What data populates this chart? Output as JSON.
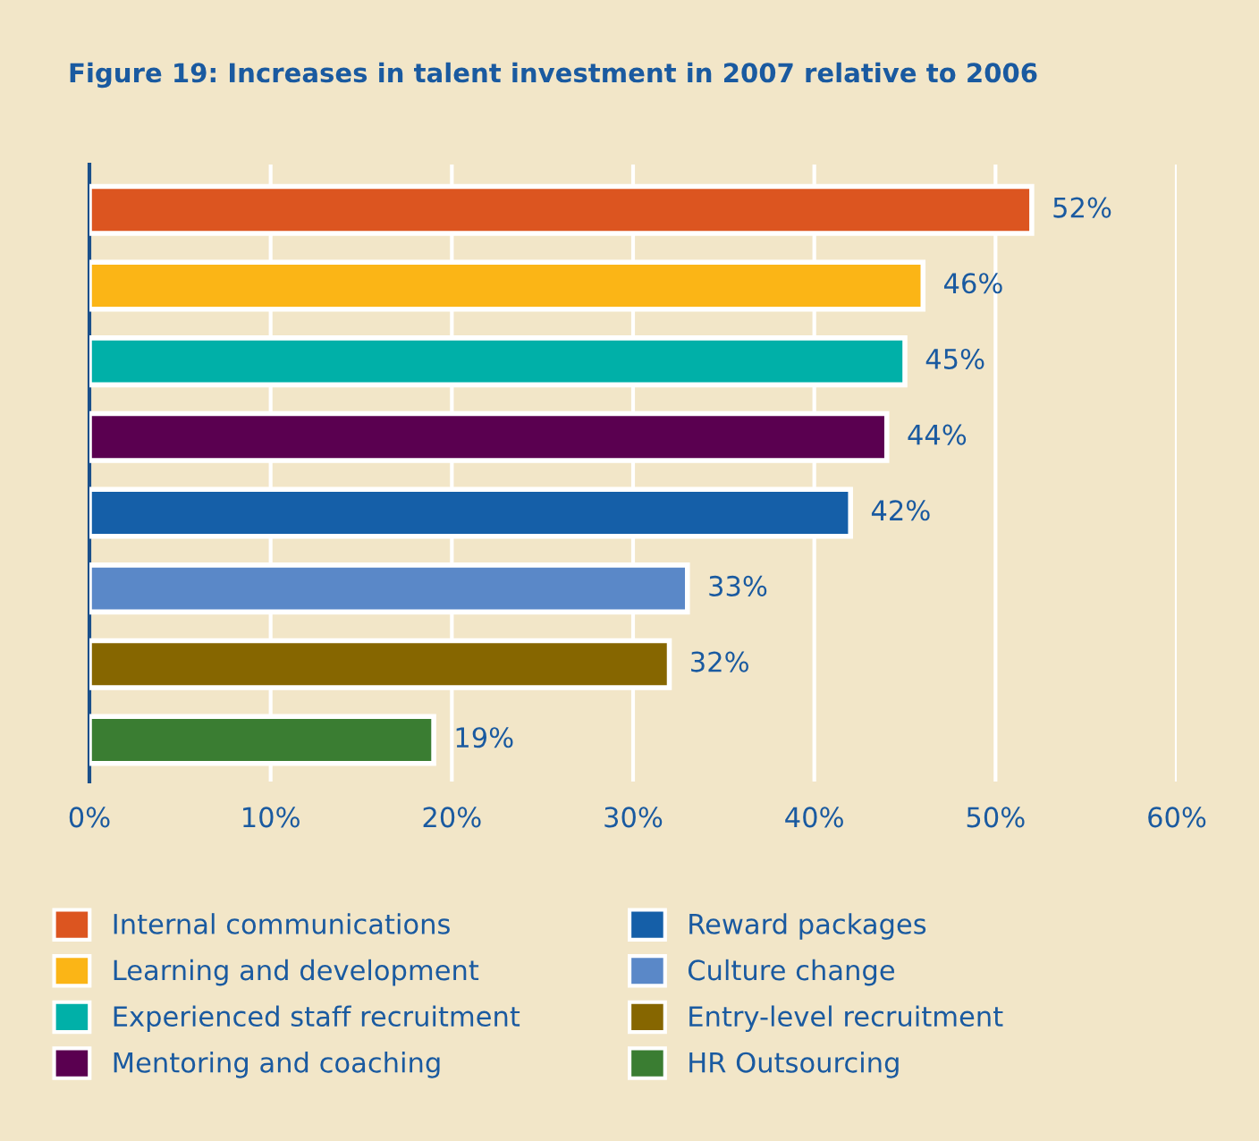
{
  "chart_data": {
    "type": "bar",
    "orientation": "horizontal",
    "title": "Figure 19: Increases in talent investment in 2007 relative to 2006",
    "categories": [
      null,
      null,
      null,
      null,
      null,
      null,
      null,
      null
    ],
    "series": [
      {
        "name": "Internal communications",
        "color": "#dc5520",
        "values": [
          52,
          null,
          null,
          null,
          null,
          null,
          null,
          null
        ],
        "value_labels": [
          "52%",
          null,
          null,
          null,
          null,
          null,
          null,
          null
        ]
      },
      {
        "name": "Learning and development",
        "color": "#fbb516",
        "values": [
          null,
          46,
          null,
          null,
          null,
          null,
          null,
          null
        ],
        "value_labels": [
          null,
          "46%",
          null,
          null,
          null,
          null,
          null,
          null
        ]
      },
      {
        "name": "Experienced staff recruitment",
        "color": "#00b0a8",
        "values": [
          null,
          null,
          45,
          null,
          null,
          null,
          null,
          null
        ],
        "value_labels": [
          null,
          null,
          "45%",
          null,
          null,
          null,
          null,
          null
        ]
      },
      {
        "name": "Mentoring and coaching",
        "color": "#5a0050",
        "values": [
          null,
          null,
          null,
          44,
          null,
          null,
          null,
          null
        ],
        "value_labels": [
          null,
          null,
          null,
          "44%",
          null,
          null,
          null,
          null
        ]
      },
      {
        "name": "Reward packages",
        "color": "#155fa8",
        "values": [
          null,
          null,
          null,
          null,
          42,
          null,
          null,
          null
        ],
        "value_labels": [
          null,
          null,
          null,
          null,
          "42%",
          null,
          null,
          null
        ]
      },
      {
        "name": "Culture change",
        "color": "#5a88c8",
        "values": [
          null,
          null,
          null,
          null,
          null,
          33,
          null,
          null
        ],
        "value_labels": [
          null,
          null,
          null,
          null,
          null,
          "33%",
          null,
          null
        ]
      },
      {
        "name": "Entry-level recruitment",
        "color": "#866600",
        "values": [
          null,
          null,
          null,
          null,
          null,
          null,
          32,
          null
        ],
        "value_labels": [
          null,
          null,
          null,
          null,
          null,
          null,
          "32%",
          null
        ]
      },
      {
        "name": "HR Outsourcing",
        "color": "#3a7d32",
        "values": [
          null,
          null,
          null,
          null,
          null,
          null,
          null,
          19
        ],
        "value_labels": [
          null,
          null,
          null,
          null,
          null,
          null,
          null,
          "19%"
        ]
      }
    ],
    "xlim": [
      0,
      60
    ],
    "xticks": [
      {
        "value": 0,
        "label": "0%"
      },
      {
        "value": 10,
        "label": "10%"
      },
      {
        "value": 20,
        "label": "20%"
      },
      {
        "value": 30,
        "label": "30%"
      },
      {
        "value": 40,
        "label": "40%"
      },
      {
        "value": 50,
        "label": "50%"
      },
      {
        "value": 60,
        "label": "60%"
      }
    ],
    "grid": "x",
    "legend": "bottom"
  }
}
